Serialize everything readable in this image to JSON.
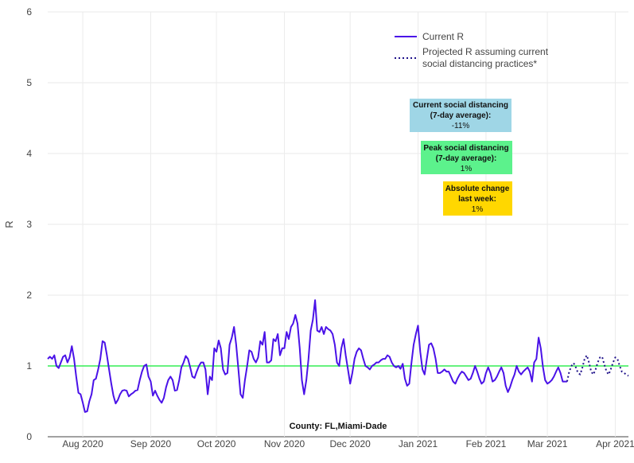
{
  "chart_data": {
    "type": "line",
    "title": "",
    "xlabel": "",
    "ylabel": "R",
    "ylim": [
      0,
      6
    ],
    "yticks": [
      "0",
      "1",
      "2",
      "3",
      "4",
      "5",
      "6"
    ],
    "xlim_day": [
      0,
      265
    ],
    "xticks": [
      {
        "label": "Aug 2020",
        "day": 16
      },
      {
        "label": "Sep 2020",
        "day": 47
      },
      {
        "label": "Oct 2020",
        "day": 77
      },
      {
        "label": "Nov 2020",
        "day": 108
      },
      {
        "label": "Dec 2020",
        "day": 138
      },
      {
        "label": "Jan 2021",
        "day": 169
      },
      {
        "label": "Feb 2021",
        "day": 200
      },
      {
        "label": "Mar 2021",
        "day": 228
      },
      {
        "label": "Apr 2021",
        "day": 259
      }
    ],
    "start_date": "2020-07-16",
    "reference_line": {
      "y": 1,
      "color": "#33ee55"
    },
    "series": [
      {
        "name": "Current R",
        "style": "solid",
        "color": "#4a12e8",
        "points": [
          [
            0,
            1.1
          ],
          [
            1,
            1.13
          ],
          [
            2,
            1.1
          ],
          [
            3,
            1.15
          ],
          [
            4,
            1.0
          ],
          [
            5,
            0.97
          ],
          [
            6,
            1.05
          ],
          [
            7,
            1.13
          ],
          [
            8,
            1.15
          ],
          [
            9,
            1.05
          ],
          [
            10,
            1.12
          ],
          [
            11,
            1.28
          ],
          [
            12,
            1.1
          ],
          [
            13,
            0.85
          ],
          [
            14,
            0.62
          ],
          [
            15,
            0.6
          ],
          [
            16,
            0.48
          ],
          [
            17,
            0.35
          ],
          [
            18,
            0.36
          ],
          [
            19,
            0.5
          ],
          [
            20,
            0.6
          ],
          [
            21,
            0.8
          ],
          [
            22,
            0.82
          ],
          [
            23,
            0.95
          ],
          [
            24,
            1.1
          ],
          [
            25,
            1.35
          ],
          [
            26,
            1.33
          ],
          [
            27,
            1.15
          ],
          [
            28,
            0.95
          ],
          [
            29,
            0.75
          ],
          [
            30,
            0.58
          ],
          [
            31,
            0.47
          ],
          [
            32,
            0.52
          ],
          [
            33,
            0.6
          ],
          [
            34,
            0.65
          ],
          [
            35,
            0.66
          ],
          [
            36,
            0.65
          ],
          [
            37,
            0.57
          ],
          [
            38,
            0.6
          ],
          [
            39,
            0.62
          ],
          [
            40,
            0.65
          ],
          [
            41,
            0.66
          ],
          [
            42,
            0.8
          ],
          [
            43,
            0.92
          ],
          [
            44,
            1.0
          ],
          [
            45,
            1.02
          ],
          [
            46,
            0.85
          ],
          [
            47,
            0.78
          ],
          [
            48,
            0.58
          ],
          [
            49,
            0.65
          ],
          [
            50,
            0.58
          ],
          [
            51,
            0.52
          ],
          [
            52,
            0.48
          ],
          [
            53,
            0.55
          ],
          [
            54,
            0.7
          ],
          [
            55,
            0.8
          ],
          [
            56,
            0.85
          ],
          [
            57,
            0.8
          ],
          [
            58,
            0.65
          ],
          [
            59,
            0.66
          ],
          [
            60,
            0.8
          ],
          [
            61,
            0.98
          ],
          [
            62,
            1.05
          ],
          [
            63,
            1.14
          ],
          [
            64,
            1.1
          ],
          [
            65,
            0.98
          ],
          [
            66,
            0.85
          ],
          [
            67,
            0.83
          ],
          [
            68,
            0.92
          ],
          [
            69,
            1.0
          ],
          [
            70,
            1.05
          ],
          [
            71,
            1.05
          ],
          [
            72,
            0.95
          ],
          [
            73,
            0.6
          ],
          [
            74,
            0.85
          ],
          [
            75,
            0.8
          ],
          [
            76,
            1.25
          ],
          [
            77,
            1.2
          ],
          [
            78,
            1.36
          ],
          [
            79,
            1.25
          ],
          [
            80,
            0.95
          ],
          [
            81,
            0.88
          ],
          [
            82,
            0.9
          ],
          [
            83,
            1.3
          ],
          [
            84,
            1.4
          ],
          [
            85,
            1.55
          ],
          [
            86,
            1.3
          ],
          [
            87,
            0.95
          ],
          [
            88,
            0.6
          ],
          [
            89,
            0.55
          ],
          [
            90,
            0.8
          ],
          [
            91,
            1.0
          ],
          [
            92,
            1.22
          ],
          [
            93,
            1.2
          ],
          [
            94,
            1.1
          ],
          [
            95,
            1.05
          ],
          [
            96,
            1.12
          ],
          [
            97,
            1.35
          ],
          [
            98,
            1.3
          ],
          [
            99,
            1.48
          ],
          [
            100,
            1.05
          ],
          [
            101,
            1.05
          ],
          [
            102,
            1.08
          ],
          [
            103,
            1.38
          ],
          [
            104,
            1.35
          ],
          [
            105,
            1.45
          ],
          [
            106,
            1.15
          ],
          [
            107,
            1.25
          ],
          [
            108,
            1.25
          ],
          [
            109,
            1.48
          ],
          [
            110,
            1.38
          ],
          [
            111,
            1.55
          ],
          [
            112,
            1.6
          ],
          [
            113,
            1.72
          ],
          [
            114,
            1.6
          ],
          [
            115,
            1.25
          ],
          [
            116,
            0.8
          ],
          [
            117,
            0.6
          ],
          [
            118,
            0.8
          ],
          [
            119,
            1.1
          ],
          [
            120,
            1.5
          ],
          [
            121,
            1.65
          ],
          [
            122,
            1.93
          ],
          [
            123,
            1.5
          ],
          [
            124,
            1.48
          ],
          [
            125,
            1.55
          ],
          [
            126,
            1.45
          ],
          [
            127,
            1.55
          ],
          [
            128,
            1.52
          ],
          [
            129,
            1.5
          ],
          [
            130,
            1.45
          ],
          [
            131,
            1.3
          ],
          [
            132,
            1.05
          ],
          [
            133,
            1.0
          ],
          [
            134,
            1.25
          ],
          [
            135,
            1.38
          ],
          [
            136,
            1.15
          ],
          [
            137,
            0.95
          ],
          [
            138,
            0.75
          ],
          [
            139,
            0.9
          ],
          [
            140,
            1.1
          ],
          [
            141,
            1.2
          ],
          [
            142,
            1.25
          ],
          [
            143,
            1.22
          ],
          [
            144,
            1.1
          ],
          [
            145,
            1.0
          ],
          [
            146,
            0.98
          ],
          [
            147,
            0.95
          ],
          [
            148,
            1.0
          ],
          [
            149,
            1.02
          ],
          [
            150,
            1.05
          ],
          [
            151,
            1.05
          ],
          [
            152,
            1.08
          ],
          [
            153,
            1.1
          ],
          [
            154,
            1.1
          ],
          [
            155,
            1.15
          ],
          [
            156,
            1.13
          ],
          [
            157,
            1.05
          ],
          [
            158,
            1.0
          ],
          [
            159,
            0.98
          ],
          [
            160,
            1.0
          ],
          [
            161,
            0.96
          ],
          [
            162,
            1.03
          ],
          [
            163,
            0.82
          ],
          [
            164,
            0.72
          ],
          [
            165,
            0.75
          ],
          [
            166,
            1.05
          ],
          [
            167,
            1.3
          ],
          [
            168,
            1.45
          ],
          [
            169,
            1.57
          ],
          [
            170,
            1.2
          ],
          [
            171,
            0.95
          ],
          [
            172,
            0.88
          ],
          [
            173,
            1.1
          ],
          [
            174,
            1.3
          ],
          [
            175,
            1.32
          ],
          [
            176,
            1.25
          ],
          [
            177,
            1.1
          ],
          [
            178,
            0.9
          ],
          [
            179,
            0.9
          ],
          [
            180,
            0.92
          ],
          [
            181,
            0.95
          ],
          [
            182,
            0.92
          ],
          [
            183,
            0.92
          ],
          [
            184,
            0.85
          ],
          [
            185,
            0.78
          ],
          [
            186,
            0.75
          ],
          [
            187,
            0.82
          ],
          [
            188,
            0.88
          ],
          [
            189,
            0.92
          ],
          [
            190,
            0.9
          ],
          [
            191,
            0.85
          ],
          [
            192,
            0.8
          ],
          [
            193,
            0.82
          ],
          [
            194,
            0.9
          ],
          [
            195,
            1.0
          ],
          [
            196,
            0.92
          ],
          [
            197,
            0.82
          ],
          [
            198,
            0.75
          ],
          [
            199,
            0.78
          ],
          [
            200,
            0.9
          ],
          [
            201,
            0.98
          ],
          [
            202,
            0.9
          ],
          [
            203,
            0.78
          ],
          [
            204,
            0.8
          ],
          [
            205,
            0.85
          ],
          [
            206,
            0.92
          ],
          [
            207,
            0.98
          ],
          [
            208,
            0.9
          ],
          [
            209,
            0.72
          ],
          [
            210,
            0.63
          ],
          [
            211,
            0.7
          ],
          [
            212,
            0.8
          ],
          [
            213,
            0.88
          ],
          [
            214,
            1.0
          ],
          [
            215,
            0.92
          ],
          [
            216,
            0.88
          ],
          [
            217,
            0.92
          ],
          [
            218,
            0.95
          ],
          [
            219,
            0.98
          ],
          [
            220,
            0.92
          ],
          [
            221,
            0.78
          ],
          [
            222,
            1.05
          ],
          [
            223,
            1.1
          ],
          [
            224,
            1.4
          ],
          [
            225,
            1.25
          ],
          [
            226,
            0.98
          ],
          [
            227,
            0.8
          ],
          [
            228,
            0.75
          ],
          [
            229,
            0.77
          ],
          [
            230,
            0.8
          ],
          [
            231,
            0.85
          ],
          [
            232,
            0.92
          ],
          [
            233,
            0.98
          ],
          [
            234,
            0.9
          ],
          [
            235,
            0.78
          ],
          [
            236,
            0.78
          ],
          [
            237,
            0.78
          ]
        ]
      },
      {
        "name": "Projected R assuming current social distancing practices*",
        "style": "dotted",
        "color": "#20128a",
        "points": [
          [
            237,
            0.78
          ],
          [
            238,
            0.92
          ],
          [
            239,
            1.0
          ],
          [
            240,
            1.04
          ],
          [
            241,
            0.98
          ],
          [
            242,
            0.9
          ],
          [
            243,
            0.88
          ],
          [
            244,
            0.98
          ],
          [
            245,
            1.1
          ],
          [
            246,
            1.15
          ],
          [
            247,
            1.05
          ],
          [
            248,
            0.92
          ],
          [
            249,
            0.88
          ],
          [
            250,
            0.95
          ],
          [
            251,
            1.05
          ],
          [
            252,
            1.12
          ],
          [
            253,
            1.13
          ],
          [
            254,
            1.02
          ],
          [
            255,
            0.92
          ],
          [
            256,
            0.88
          ],
          [
            257,
            0.96
          ],
          [
            258,
            1.05
          ],
          [
            259,
            1.12
          ],
          [
            260,
            1.1
          ],
          [
            261,
            1.0
          ],
          [
            262,
            0.92
          ],
          [
            263,
            0.9
          ],
          [
            264,
            0.88
          ],
          [
            265,
            0.86
          ]
        ]
      }
    ],
    "legend": {
      "placement": "top-right",
      "entries": [
        {
          "label": "Current R",
          "style": "solid"
        },
        {
          "label": "Projected R assuming current",
          "label2": "social distancing practices*",
          "style": "dotted"
        }
      ]
    },
    "annotations": [
      {
        "lines": [
          "Current social distancing",
          "(7-day average):"
        ],
        "value": "-11%",
        "color": "#9fd6e6"
      },
      {
        "lines": [
          "Peak social distancing",
          "(7-day average):"
        ],
        "value": "1%",
        "color": "#5cf28c"
      },
      {
        "lines": [
          "Absolute change",
          "last week:"
        ],
        "value": "1%",
        "color": "#ffd700"
      }
    ],
    "footer": "County: FL,Miami-Dade"
  }
}
